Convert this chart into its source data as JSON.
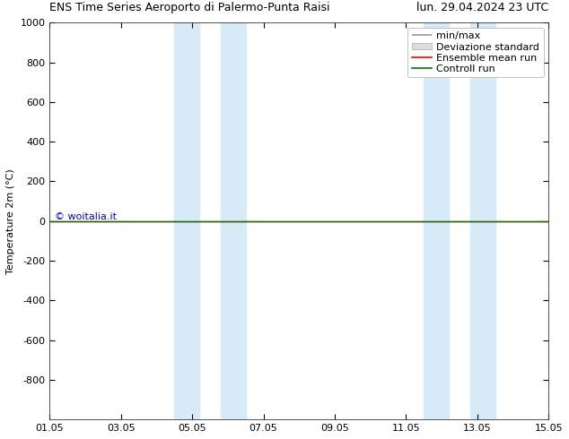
{
  "title_left": "ENS Time Series Aeroporto di Palermo-Punta Raisi",
  "title_right": "lun. 29.04.2024 23 UTC",
  "ylabel": "Temperature 2m (°C)",
  "ylim_top": -1000,
  "ylim_bottom": 1000,
  "yticks": [
    -800,
    -600,
    -400,
    -200,
    0,
    200,
    400,
    600,
    800,
    1000
  ],
  "xtick_labels": [
    "01.05",
    "03.05",
    "05.05",
    "07.05",
    "09.05",
    "11.05",
    "13.05",
    "15.05"
  ],
  "xtick_positions": [
    0,
    2,
    4,
    6,
    8,
    10,
    12,
    14
  ],
  "shaded_bands": [
    [
      3.5,
      4.2
    ],
    [
      4.8,
      5.5
    ],
    [
      10.5,
      11.2
    ],
    [
      11.8,
      12.5
    ]
  ],
  "shaded_color": "#d6eaf8",
  "control_run_y": 0,
  "control_run_color": "#007700",
  "ensemble_mean_color": "#ff0000",
  "min_max_color": "#999999",
  "std_color": "#dddddd",
  "watermark": "© woitalia.it",
  "watermark_color": "#0000cc",
  "background_color": "#ffffff",
  "legend_items": [
    "min/max",
    "Deviazione standard",
    "Ensemble mean run",
    "Controll run"
  ],
  "legend_colors": [
    "#999999",
    "#dddddd",
    "#ff0000",
    "#007700"
  ],
  "font_size_title": 9,
  "font_size_axis": 8,
  "font_size_legend": 8,
  "font_size_watermark": 8
}
